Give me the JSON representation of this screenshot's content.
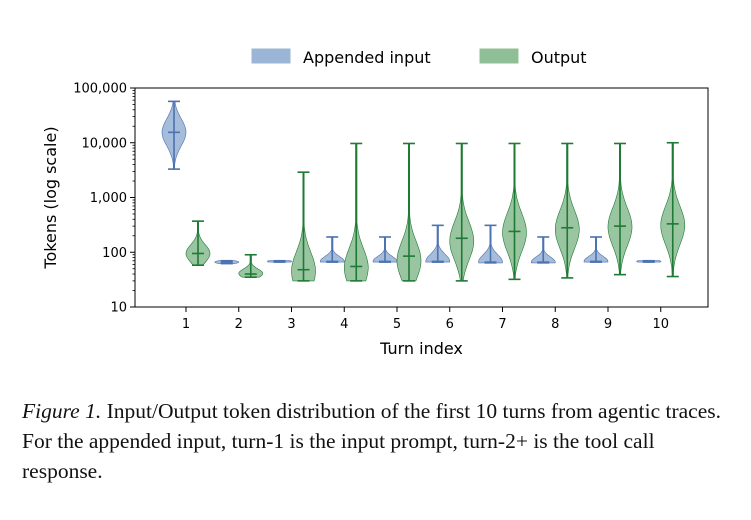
{
  "chart_data": {
    "type": "violin",
    "xlabel": "Turn index",
    "ylabel": "Tokens (log scale)",
    "yscale": "log",
    "ylim": [
      10,
      100000
    ],
    "yticks": [
      10,
      100,
      1000,
      10000,
      100000
    ],
    "ytick_labels": [
      "10",
      "100",
      "1,000",
      "10,000",
      "100,000"
    ],
    "categories": [
      "1",
      "2",
      "3",
      "4",
      "5",
      "6",
      "7",
      "8",
      "9",
      "10"
    ],
    "legend_position": "top-center",
    "grid": false,
    "series": [
      {
        "name": "Appended input",
        "color": "#4c72b0",
        "fill": "#9bb5d6",
        "min": [
          3300,
          62,
          66,
          66,
          66,
          66,
          64,
          64,
          66,
          66
        ],
        "median": [
          15500,
          66,
          68,
          68,
          68,
          68,
          66,
          66,
          68,
          68
        ],
        "max": [
          57000,
          70,
          70,
          190,
          190,
          310,
          310,
          190,
          190,
          70
        ],
        "mode": [
          15500,
          66,
          68,
          68,
          68,
          68,
          66,
          66,
          68,
          68
        ]
      },
      {
        "name": "Output",
        "color": "#1e7a34",
        "fill": "#8fbf97",
        "min": [
          58,
          35,
          30,
          30,
          30,
          30,
          32,
          34,
          39,
          36
        ],
        "median": [
          95,
          40,
          48,
          55,
          85,
          180,
          240,
          280,
          300,
          330
        ],
        "max": [
          370,
          90,
          2900,
          9700,
          9700,
          9700,
          9700,
          9700,
          9700,
          10000
        ],
        "mode": [
          95,
          41,
          45,
          52,
          70,
          160,
          230,
          260,
          290,
          310
        ]
      }
    ]
  },
  "caption": {
    "lead": "Figure 1.",
    "text": " Input/Output token distribution of the first 10 turns from agentic traces. For the appended input, turn-1 is the input prompt, turn-2+ is the tool call response."
  }
}
